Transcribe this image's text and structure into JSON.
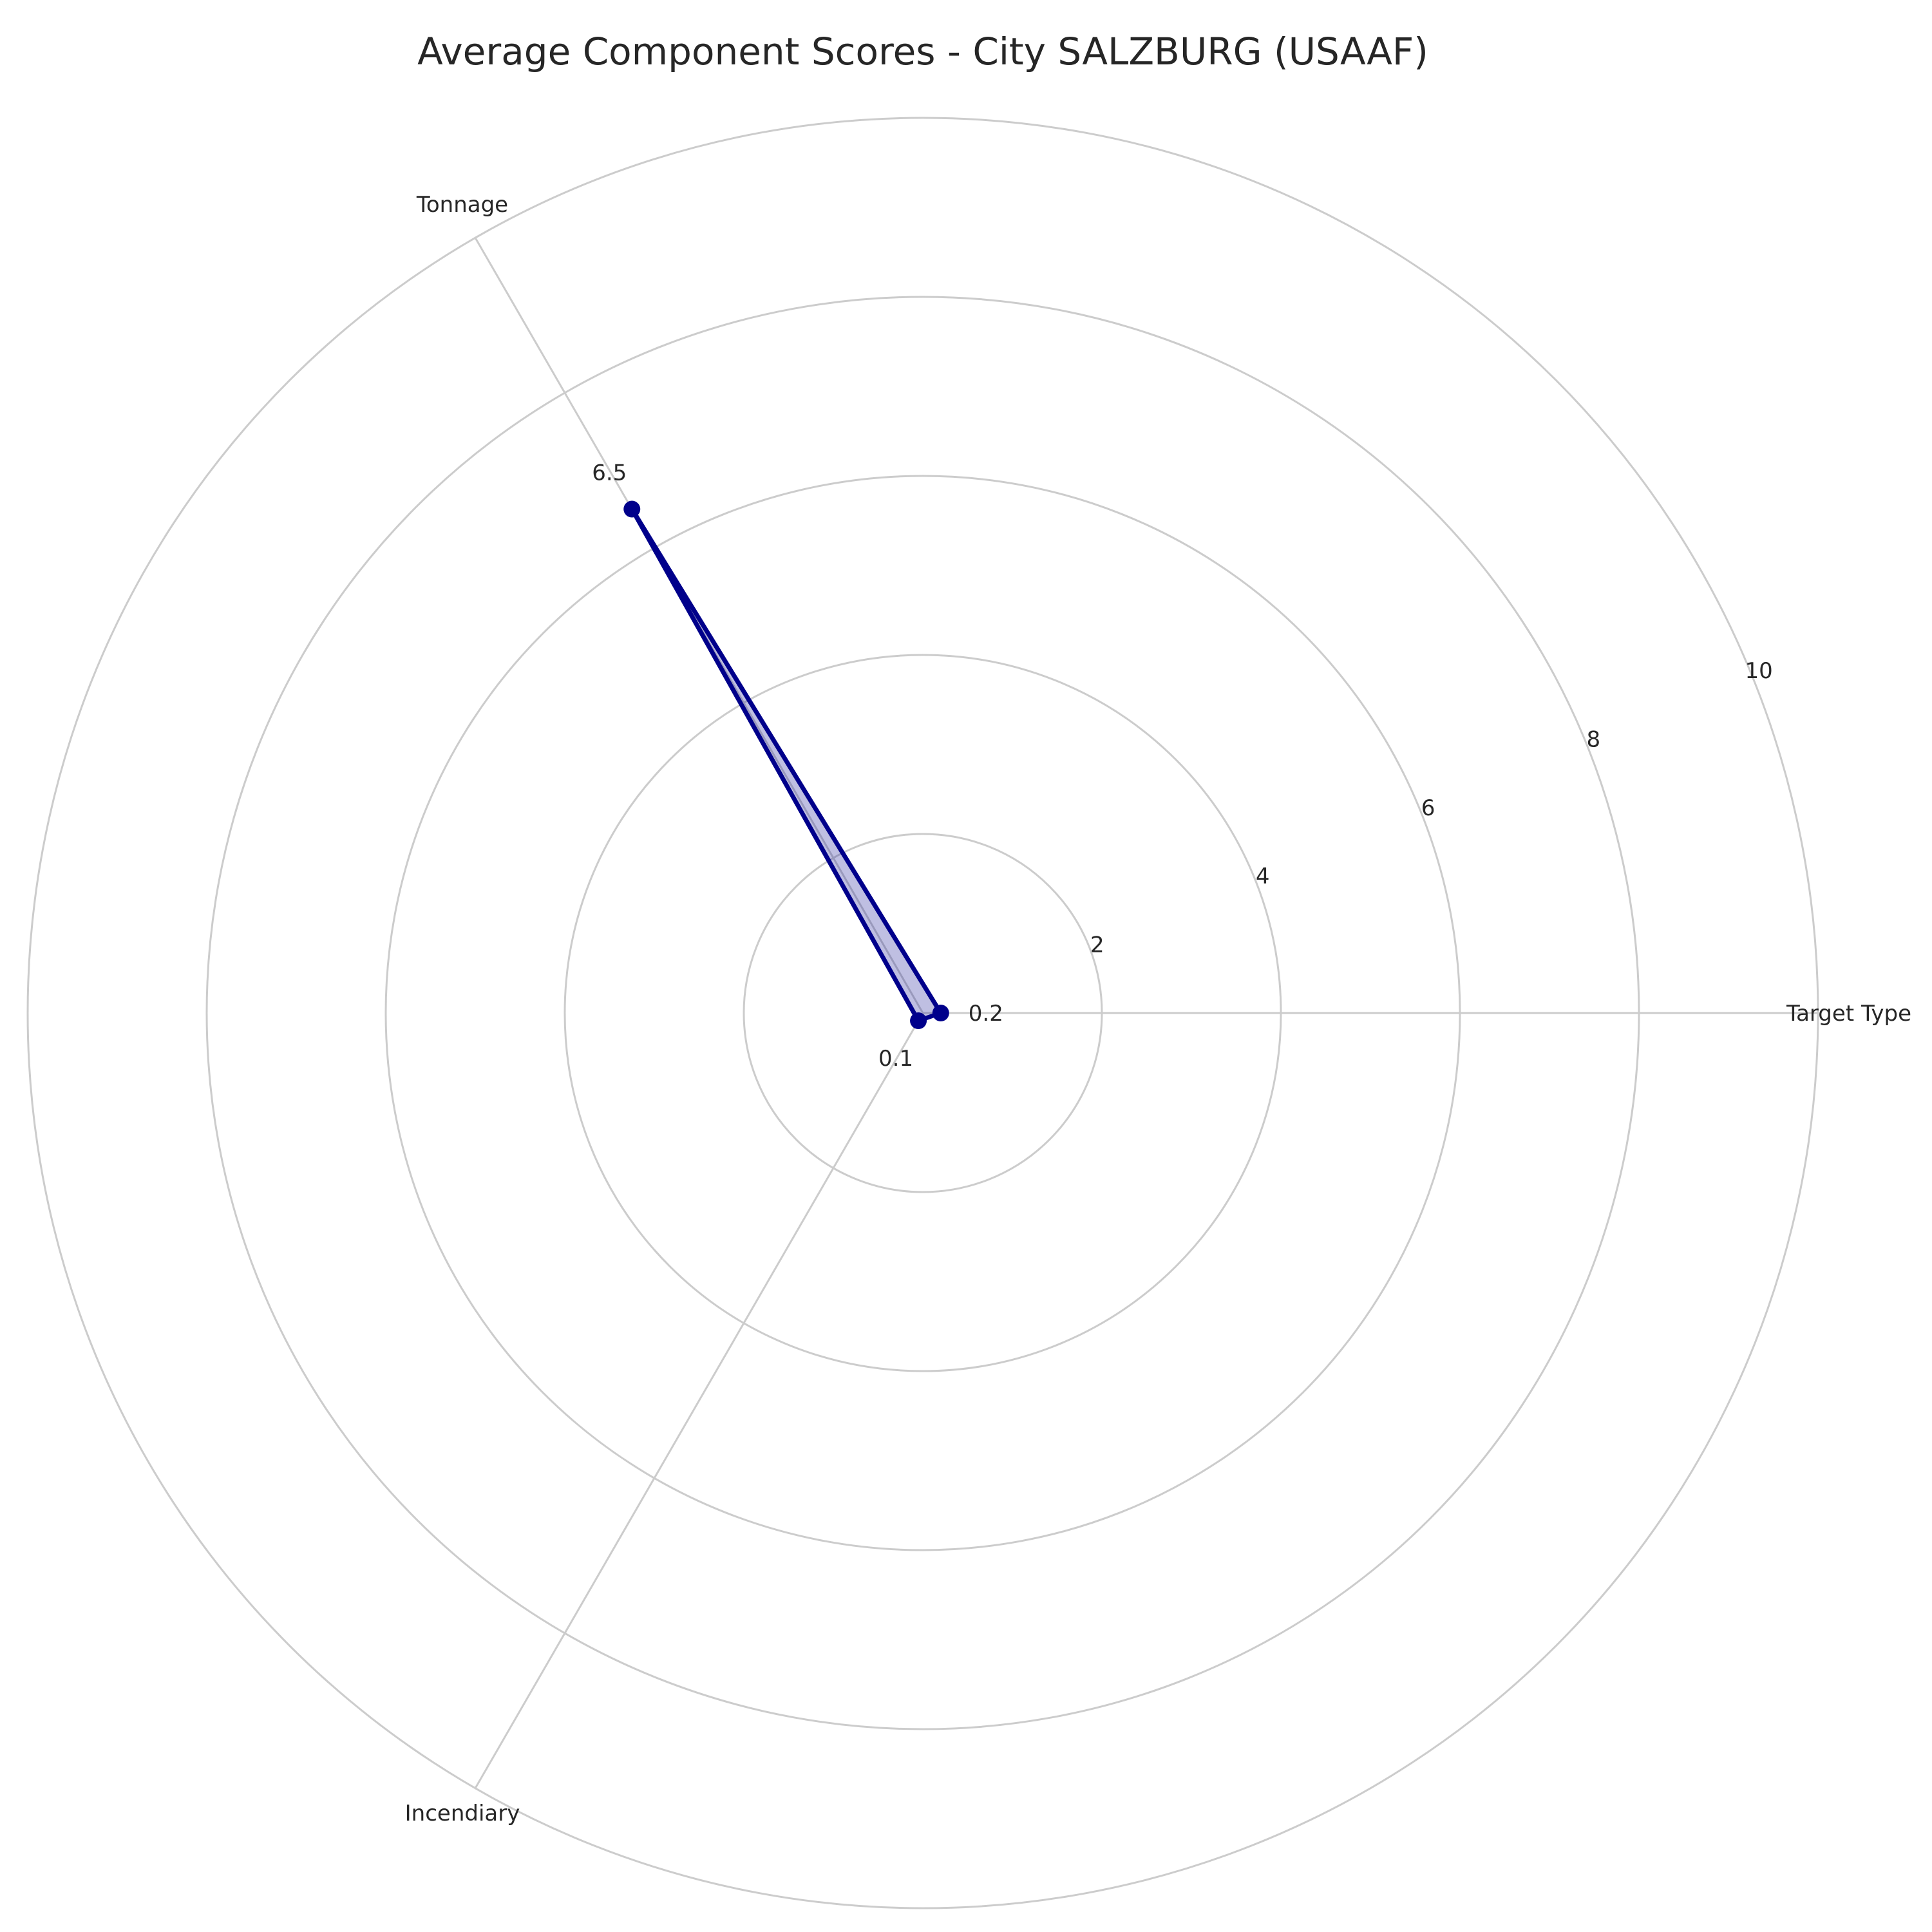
{
  "chart_data": {
    "type": "radar",
    "title": "Average Component Scores - City SALZBURG (USAAF)",
    "axes": [
      "Target Type",
      "Tonnage",
      "Incendiary"
    ],
    "values": [
      0.2,
      6.5,
      0.1
    ],
    "value_labels": [
      "0.2",
      "6.5",
      "0.1"
    ],
    "rlim": [
      0,
      10
    ],
    "rticks": [
      2,
      4,
      6,
      8,
      10
    ],
    "rtick_labels": [
      "2",
      "4",
      "6",
      "8",
      "10"
    ],
    "grid": true,
    "colors": {
      "series_line": "#00008b",
      "series_fill": "#00008b",
      "grid": "#cccccc",
      "text": "#262626"
    }
  }
}
